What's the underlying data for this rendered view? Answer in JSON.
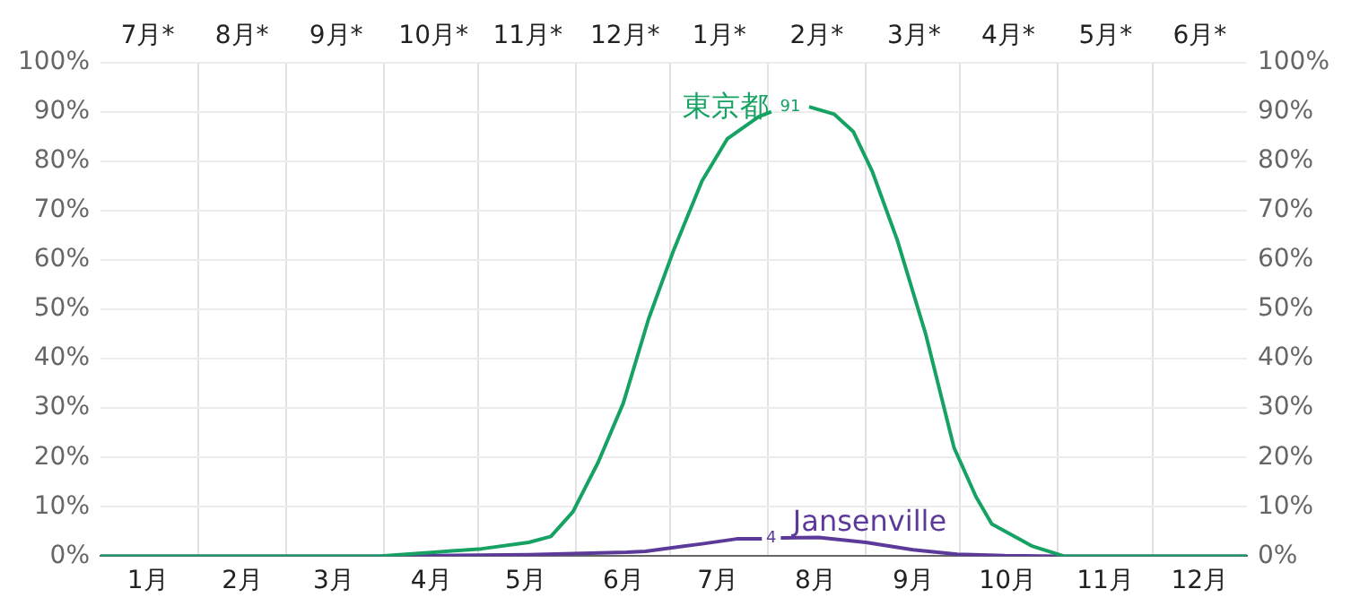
{
  "chart_data": {
    "type": "line",
    "x": [
      "--01-01",
      "--03-30",
      "--04-17",
      "--05-02",
      "--05-17",
      "--05-24",
      "--05-31",
      "--06-08",
      "--06-16",
      "--06-24",
      "--07-02",
      "--07-11",
      "--07-19",
      "--07-29",
      "--08-02",
      "--08-08",
      "--08-14",
      "--08-22",
      "--08-28",
      "--09-03",
      "--09-11",
      "--09-20",
      "--09-29",
      "--10-06",
      "--10-11",
      "--10-24",
      "--11-03",
      "--12-31"
    ],
    "series": [
      {
        "name": "東京都",
        "color": "#16a263",
        "values": [
          0,
          0,
          0.8,
          1.5,
          2.8,
          4,
          9,
          19,
          31,
          48,
          62,
          76,
          84.5,
          89,
          90,
          null,
          91,
          89.5,
          86,
          78,
          64,
          45,
          22,
          12,
          6.5,
          2,
          0,
          0
        ]
      },
      {
        "name": "Jansenville",
        "color": "#5b3a9a",
        "x": [
          "--01-01",
          "--04-01",
          "--05-17",
          "--06-17",
          "--06-23",
          "--07-11",
          "--07-22",
          "--07-30",
          "--08-02",
          "--08-05",
          "--08-17",
          "--09-01",
          "--09-16",
          "--09-30",
          "--10-15",
          "--11-01",
          "--12-31"
        ],
        "values": [
          0,
          0,
          0.3,
          0.8,
          1,
          2.5,
          3.5,
          3.5,
          null,
          3.7,
          3.8,
          2.8,
          1.3,
          0.4,
          0.1,
          0,
          0
        ]
      }
    ],
    "annotations": [
      "91",
      "4"
    ],
    "xlim": [
      "--01-01",
      "--12-31"
    ],
    "xticks": [
      {
        "value": "--01-16",
        "label": "1月"
      },
      {
        "value": "--02-01",
        "label": null
      },
      {
        "value": "--02-15",
        "label": "2月"
      },
      {
        "value": "--03-01",
        "label": null
      },
      {
        "value": "--03-16",
        "label": "3月"
      },
      {
        "value": "--04-01",
        "label": null
      },
      {
        "value": "--04-16",
        "label": "4月"
      },
      {
        "value": "--05-01",
        "label": null
      },
      {
        "value": "--05-16",
        "label": "5月"
      },
      {
        "value": "--06-01",
        "label": null
      },
      {
        "value": "--06-16",
        "label": "6月"
      },
      {
        "value": "--07-01",
        "label": null
      },
      {
        "value": "--07-16",
        "label": "7月"
      },
      {
        "value": "--08-01",
        "label": null
      },
      {
        "value": "--08-16",
        "label": "8月"
      },
      {
        "value": "--09-01",
        "label": null
      },
      {
        "value": "--09-16",
        "label": "9月"
      },
      {
        "value": "--10-01",
        "label": null
      },
      {
        "value": "--10-16",
        "label": "10月"
      },
      {
        "value": "--11-01",
        "label": null
      },
      {
        "value": "--11-16",
        "label": "11月"
      },
      {
        "value": "--12-01",
        "label": null
      },
      {
        "value": "--12-16",
        "label": "12月"
      }
    ],
    "x2lim": [
      "--01-01",
      "--12-31"
    ],
    "x2ticks": [
      {
        "value": "--01-16",
        "label": "7月*"
      },
      {
        "value": "--02-15",
        "label": "8月*"
      },
      {
        "value": "--03-16",
        "label": "9月*"
      },
      {
        "value": "--04-16",
        "label": "10月*"
      },
      {
        "value": "--05-16",
        "label": "11月*"
      },
      {
        "value": "--06-16",
        "label": "12月*"
      },
      {
        "value": "--07-16",
        "label": "1月*"
      },
      {
        "value": "--08-16",
        "label": "2月*"
      },
      {
        "value": "--09-16",
        "label": "3月*"
      },
      {
        "value": "--10-16",
        "label": "4月*"
      },
      {
        "value": "--11-16",
        "label": "5月*"
      },
      {
        "value": "--12-16",
        "label": "6月*"
      }
    ],
    "ylim": [
      0,
      100
    ],
    "yticks": [
      {
        "value": 0,
        "label": "0%"
      },
      {
        "value": 10,
        "label": "10%"
      },
      {
        "value": 20,
        "label": "20%"
      },
      {
        "value": 30,
        "label": "30%"
      },
      {
        "value": 40,
        "label": "40%"
      },
      {
        "value": 50,
        "label": "50%"
      },
      {
        "value": 60,
        "label": "60%"
      },
      {
        "value": 70,
        "label": "70%"
      },
      {
        "value": 80,
        "label": "80%"
      },
      {
        "value": 90,
        "label": "90%"
      },
      {
        "value": 100,
        "label": "100%"
      }
    ],
    "y2lim": [
      0,
      100
    ],
    "y2ticks": [
      {
        "value": 0,
        "label": "0%"
      },
      {
        "value": 10,
        "label": "10%"
      },
      {
        "value": 20,
        "label": "20%"
      },
      {
        "value": 30,
        "label": "30%"
      },
      {
        "value": 40,
        "label": "40%"
      },
      {
        "value": 50,
        "label": "50%"
      },
      {
        "value": 60,
        "label": "60%"
      },
      {
        "value": 70,
        "label": "70%"
      },
      {
        "value": 80,
        "label": "80%"
      },
      {
        "value": 90,
        "label": "90%"
      },
      {
        "value": 100,
        "label": "100%"
      }
    ],
    "grid": true,
    "legend": false,
    "marker": "none",
    "line_style": "solid"
  }
}
